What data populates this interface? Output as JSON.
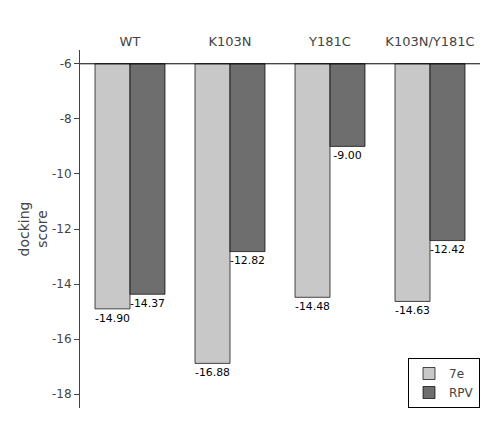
{
  "chart_data": {
    "type": "bar",
    "categories": [
      "WT",
      "K103N",
      "Y181C",
      "K103N/Y181C"
    ],
    "series": [
      {
        "name": "7e",
        "color": "#c8c8c8",
        "values": [
          -14.9,
          -16.88,
          -14.48,
          -14.63
        ],
        "value_labels": [
          "-14.90",
          "-16.88",
          "-14.48",
          "-14.63"
        ]
      },
      {
        "name": "RPV",
        "color": "#6e6e6e",
        "values": [
          -14.37,
          -12.82,
          -9.0,
          -12.42
        ],
        "value_labels": [
          "-14.37",
          "-12.82",
          "-9.00",
          "-12.42"
        ]
      }
    ],
    "base": -6,
    "ylabel": "docking\nscore",
    "ylim": [
      -18.5,
      -5.5
    ],
    "yticks": [
      -18,
      -16,
      -14,
      -12,
      -10,
      -8,
      -6
    ],
    "grid": false,
    "legend": "lower right",
    "data_labels": true
  }
}
